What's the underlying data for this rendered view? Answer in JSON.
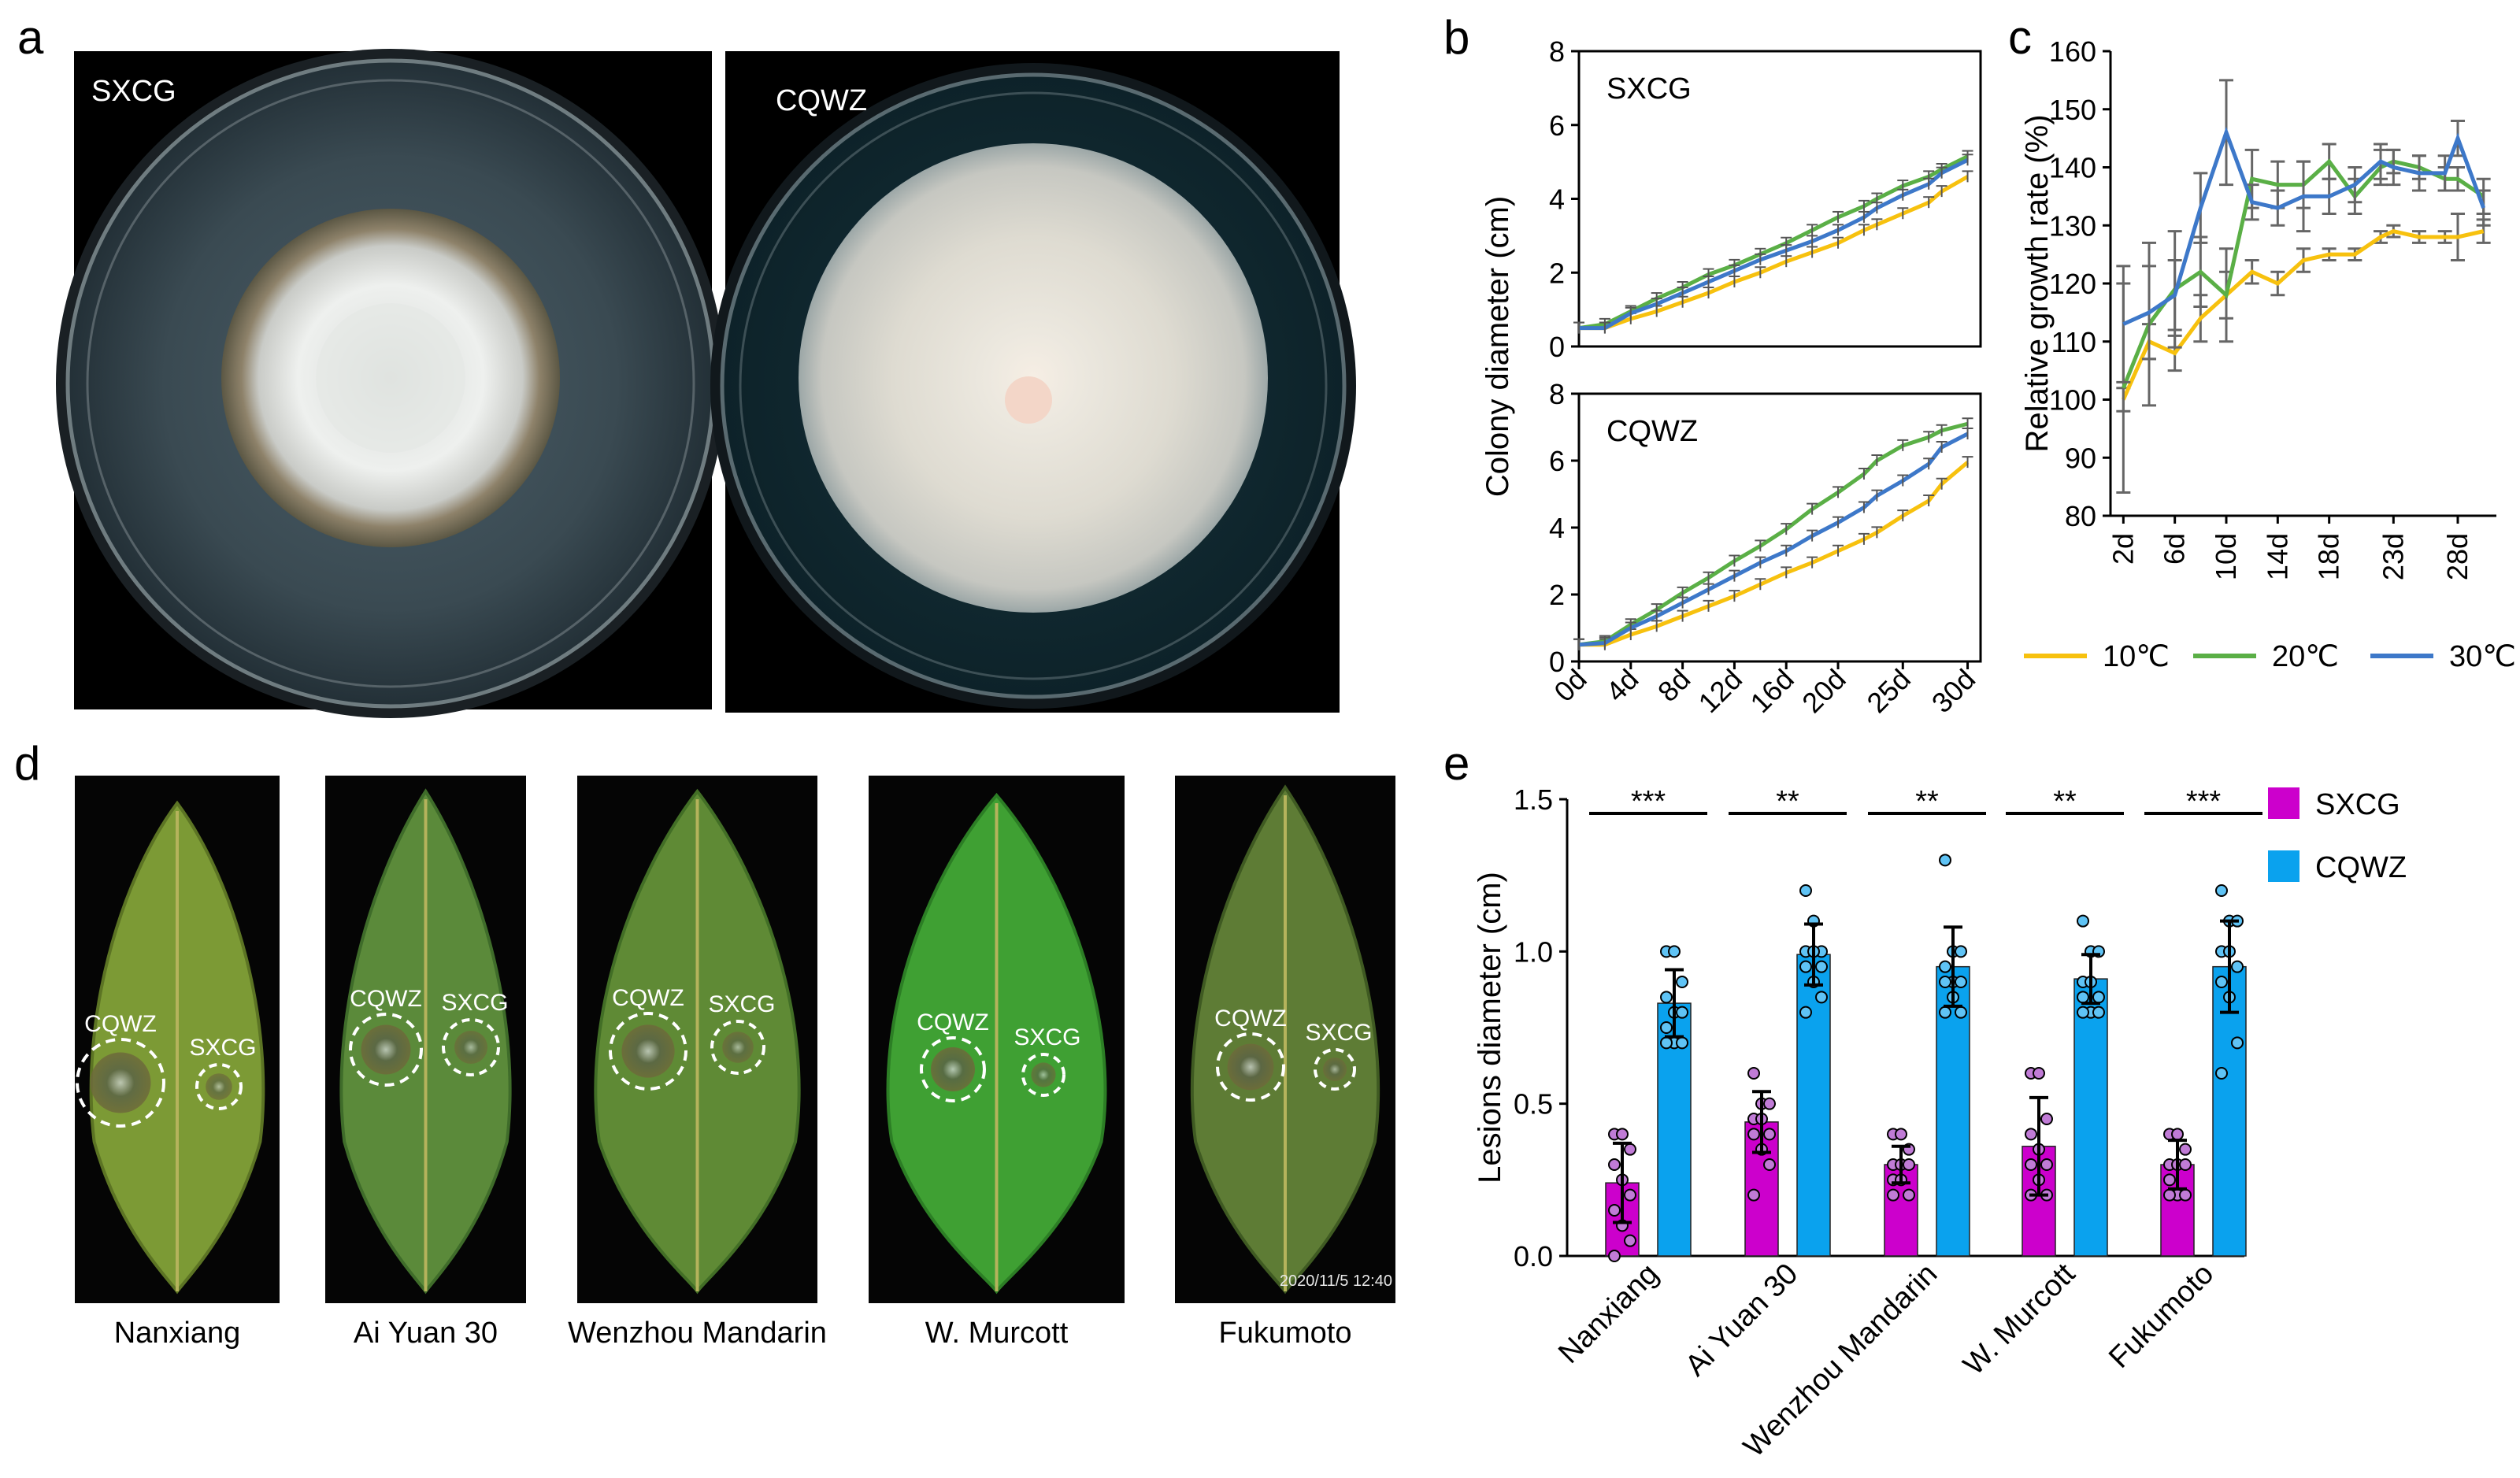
{
  "panel_letters": {
    "a": "a",
    "b": "b",
    "c": "c",
    "d": "d",
    "e": "e"
  },
  "panel_a": {
    "dishes": [
      {
        "label": "SXCG"
      },
      {
        "label": "CQWZ"
      }
    ]
  },
  "colors": {
    "c10": "#f7c10e",
    "c20": "#5aaf46",
    "c30": "#3d78c9",
    "sxcg_bar": "#cc00cc",
    "cqwz_bar": "#0aa2ee",
    "sxcg_dot": "#c07bd6",
    "cqwz_dot": "#5fc3f5"
  },
  "panel_d": {
    "leaves": [
      {
        "name": "Nanxiang",
        "spot1": "CQWZ",
        "spot2": "SXCG"
      },
      {
        "name": "Ai Yuan 30",
        "spot1": "CQWZ",
        "spot2": "SXCG"
      },
      {
        "name": "Wenzhou Mandarin",
        "spot1": "CQWZ",
        "spot2": "SXCG"
      },
      {
        "name": "W. Murcott",
        "spot1": "CQWZ",
        "spot2": "SXCG"
      },
      {
        "name": "Fukumoto",
        "spot1": "CQWZ",
        "spot2": "SXCG"
      }
    ],
    "photo_timestamp": "2020/11/5  12:40"
  },
  "chart_data": [
    {
      "id": "b",
      "type": "line",
      "ylabel": "Colony diameter (cm)",
      "x": [
        0,
        2,
        4,
        6,
        8,
        10,
        12,
        14,
        16,
        18,
        20,
        22,
        23,
        25,
        27,
        28,
        30
      ],
      "xtick_labels": [
        "0d",
        "4d",
        "8d",
        "12d",
        "16d",
        "20d",
        "25d",
        "30d"
      ],
      "xtick_values": [
        0,
        4,
        8,
        12,
        16,
        20,
        25,
        30
      ],
      "ylim": [
        0,
        8
      ],
      "yticks": [
        0,
        2,
        4,
        6,
        8
      ],
      "subplots": [
        {
          "title": "SXCG",
          "series": [
            {
              "name": "10℃",
              "values": [
                0.5,
                0.5,
                0.75,
                0.95,
                1.2,
                1.45,
                1.75,
                2.0,
                2.3,
                2.55,
                2.8,
                3.15,
                3.3,
                3.6,
                3.9,
                4.2,
                4.6
              ]
            },
            {
              "name": "20℃",
              "values": [
                0.5,
                0.6,
                0.95,
                1.3,
                1.6,
                1.95,
                2.2,
                2.5,
                2.8,
                3.15,
                3.5,
                3.8,
                4.0,
                4.35,
                4.6,
                4.8,
                5.15
              ]
            },
            {
              "name": "30℃",
              "values": [
                0.5,
                0.5,
                0.9,
                1.15,
                1.45,
                1.75,
                2.05,
                2.35,
                2.6,
                2.85,
                3.15,
                3.5,
                3.75,
                4.1,
                4.4,
                4.7,
                5.05
              ]
            }
          ]
        },
        {
          "title": "CQWZ",
          "series": [
            {
              "name": "10℃",
              "values": [
                0.5,
                0.5,
                0.8,
                1.05,
                1.35,
                1.65,
                1.95,
                2.3,
                2.65,
                2.95,
                3.3,
                3.65,
                3.85,
                4.35,
                4.8,
                5.3,
                5.95
              ]
            },
            {
              "name": "20℃",
              "values": [
                0.5,
                0.6,
                1.1,
                1.55,
                2.05,
                2.5,
                3.0,
                3.45,
                3.95,
                4.55,
                5.05,
                5.6,
                6.0,
                6.45,
                6.7,
                6.9,
                7.1
              ]
            },
            {
              "name": "30℃",
              "values": [
                0.5,
                0.55,
                1.0,
                1.35,
                1.75,
                2.15,
                2.55,
                2.95,
                3.3,
                3.75,
                4.15,
                4.6,
                4.95,
                5.4,
                5.9,
                6.4,
                6.8
              ]
            }
          ]
        }
      ]
    },
    {
      "id": "c",
      "type": "line",
      "ylabel": "Relative growth rate (%)",
      "x": [
        2,
        4,
        6,
        8,
        10,
        12,
        14,
        16,
        18,
        20,
        22,
        23,
        25,
        27,
        28,
        30
      ],
      "xtick_labels": [
        "2d",
        "6d",
        "10d",
        "14d",
        "18d",
        "23d",
        "28d"
      ],
      "xtick_values": [
        2,
        6,
        10,
        14,
        18,
        23,
        28
      ],
      "ylim": [
        80,
        160
      ],
      "yticks": [
        80,
        90,
        100,
        110,
        120,
        130,
        140,
        150,
        160
      ],
      "legend": [
        "10℃",
        "20℃",
        "30℃"
      ],
      "series": [
        {
          "name": "10℃",
          "values": [
            100,
            110,
            108,
            114,
            118,
            122,
            120,
            124,
            125,
            125,
            128,
            129,
            128,
            128,
            128,
            129
          ],
          "err": [
            2,
            3,
            3,
            4,
            4,
            2,
            2,
            2,
            1,
            1,
            1,
            1,
            1,
            1,
            4,
            2
          ]
        },
        {
          "name": "20℃",
          "values": [
            102,
            113,
            119,
            122,
            118,
            138,
            137,
            137,
            141,
            135,
            140,
            141,
            140,
            138,
            138,
            135
          ],
          "err": [
            18,
            14,
            10,
            6,
            8,
            5,
            4,
            4,
            3,
            3,
            3,
            2,
            2,
            2,
            2,
            3
          ]
        },
        {
          "name": "30℃",
          "values": [
            113,
            115,
            118,
            133,
            146,
            134,
            133,
            135,
            135,
            137,
            141,
            140,
            139,
            139,
            145,
            133
          ],
          "err": [
            10,
            8,
            6,
            6,
            9,
            3,
            3,
            6,
            3,
            3,
            3,
            3,
            3,
            3,
            3,
            3
          ]
        }
      ]
    },
    {
      "id": "e",
      "type": "bar",
      "ylabel": "Lesions diameter (cm)",
      "categories": [
        "Nanxiang",
        "Ai Yuan 30",
        "Wenzhou Mandarin",
        "W. Murcott",
        "Fukumoto"
      ],
      "ylim": [
        0,
        1.5
      ],
      "yticks": [
        0.0,
        0.5,
        1.0,
        1.5
      ],
      "ytick_labels": [
        "0.0",
        "0.5",
        "1.0",
        "1.5"
      ],
      "legend": [
        "SXCG",
        "CQWZ"
      ],
      "series": [
        {
          "name": "SXCG",
          "values": [
            0.24,
            0.44,
            0.3,
            0.36,
            0.3
          ],
          "err": [
            0.13,
            0.1,
            0.06,
            0.16,
            0.08
          ],
          "points": [
            [
              0.4,
              0.4,
              0.35,
              0.3,
              0.25,
              0.2,
              0.15,
              0.1,
              0.05,
              0.0
            ],
            [
              0.6,
              0.5,
              0.5,
              0.45,
              0.45,
              0.4,
              0.4,
              0.35,
              0.3,
              0.2
            ],
            [
              0.4,
              0.4,
              0.35,
              0.3,
              0.3,
              0.3,
              0.25,
              0.25,
              0.2,
              0.2
            ],
            [
              0.6,
              0.6,
              0.45,
              0.4,
              0.35,
              0.3,
              0.3,
              0.25,
              0.2,
              0.2
            ],
            [
              0.4,
              0.4,
              0.35,
              0.3,
              0.3,
              0.3,
              0.25,
              0.2,
              0.2,
              0.2
            ]
          ]
        },
        {
          "name": "CQWZ",
          "values": [
            0.83,
            0.99,
            0.95,
            0.91,
            0.95
          ],
          "err": [
            0.11,
            0.1,
            0.13,
            0.08,
            0.15
          ],
          "points": [
            [
              1.0,
              1.0,
              0.9,
              0.85,
              0.8,
              0.8,
              0.75,
              0.7,
              0.7,
              0.7
            ],
            [
              1.2,
              1.1,
              1.0,
              1.0,
              1.0,
              0.95,
              0.95,
              0.9,
              0.85,
              0.8
            ],
            [
              1.3,
              1.0,
              1.0,
              0.95,
              0.9,
              0.9,
              0.9,
              0.85,
              0.8,
              0.8
            ],
            [
              1.1,
              1.0,
              1.0,
              0.9,
              0.9,
              0.85,
              0.85,
              0.8,
              0.8,
              0.8
            ],
            [
              1.2,
              1.1,
              1.1,
              1.0,
              1.0,
              0.95,
              0.9,
              0.85,
              0.7,
              0.6
            ]
          ]
        }
      ],
      "significance": [
        "***",
        "**",
        "**",
        "**",
        "***"
      ]
    }
  ]
}
